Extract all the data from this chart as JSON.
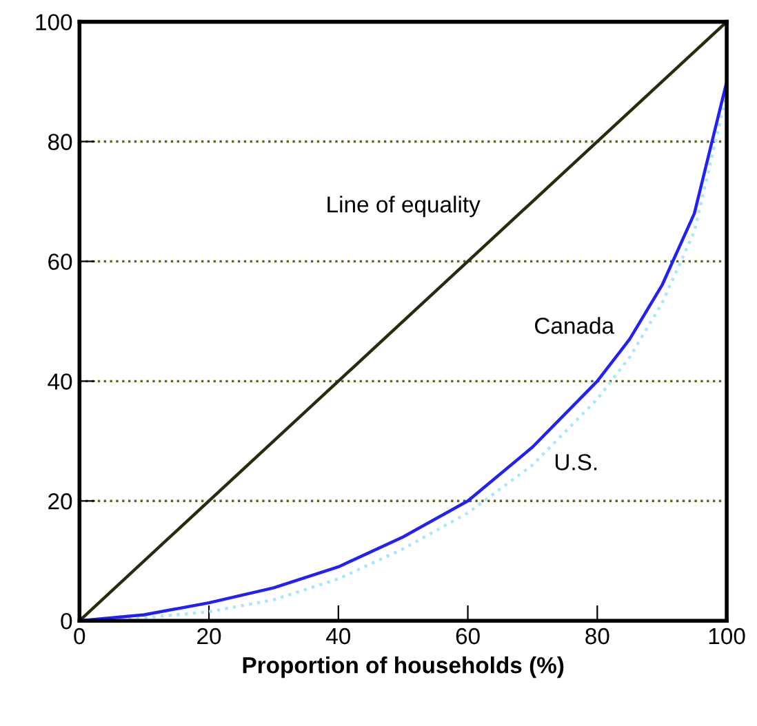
{
  "chart_data": {
    "type": "line",
    "xlabel": "Proportion of households (%)",
    "xlim": [
      0,
      100
    ],
    "ylim": [
      0,
      100
    ],
    "xticks": [
      0,
      20,
      40,
      60,
      80,
      100
    ],
    "yticks": [
      0,
      20,
      40,
      60,
      80,
      100
    ],
    "grid": "y",
    "marker": "none",
    "series": [
      {
        "name": "Line of equality",
        "color": "#2a2a10",
        "x": [
          0,
          100
        ],
        "values": [
          0,
          100
        ],
        "line_style": "solid"
      },
      {
        "name": "U.S.",
        "color": "#a8e8ff",
        "x": [
          0,
          10,
          20,
          30,
          40,
          50,
          60,
          70,
          80,
          85,
          90,
          95,
          100
        ],
        "values": [
          0,
          0.5,
          1.5,
          3.5,
          7,
          12,
          18,
          26,
          37,
          44,
          53,
          65,
          88
        ],
        "line_style": "dotted"
      },
      {
        "name": "Canada",
        "color": "#2020ff",
        "x": [
          0,
          10,
          20,
          30,
          40,
          50,
          60,
          70,
          80,
          85,
          90,
          95,
          100
        ],
        "values": [
          0,
          1,
          3,
          5.5,
          9,
          14,
          20,
          29,
          40,
          47,
          56,
          68,
          90
        ],
        "line_style": "solid"
      }
    ]
  }
}
